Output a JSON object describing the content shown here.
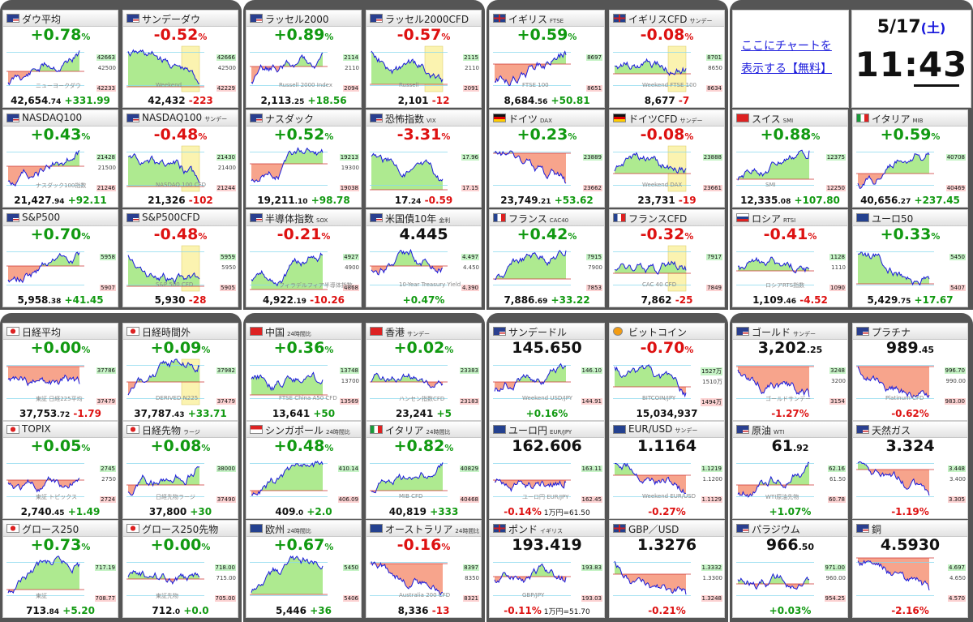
{
  "colors": {
    "up": "#119911",
    "down": "#dd1111",
    "area_up": "#aeea90",
    "area_down": "#f7a48c",
    "line": "#1a1adc",
    "group_bg": "#555555"
  },
  "info": {
    "link_line1": "ここにチャートを",
    "link_line2": "表示する【無料】",
    "date": "5/17",
    "weekday": "(土)",
    "time": "11:43"
  },
  "cards": [
    {
      "id": "dow",
      "title": "ダウ平均",
      "flag": "us",
      "main": "+0.78",
      "unit": "%",
      "dir": "up",
      "price": "42,654",
      "price_dec": ".74",
      "change": "+331.99",
      "hi": "42663",
      "mid": "42500",
      "lo": "42233",
      "wm": "ニューヨークダウ",
      "chart": {
        "trend": "up",
        "level": 0.45,
        "box": false
      }
    },
    {
      "id": "sunday-dow",
      "title": "サンデーダウ",
      "flag": "us",
      "main": "-0.52",
      "unit": "%",
      "dir": "down",
      "price": "42,432",
      "price_dec": "",
      "change": "-223",
      "hi": "42666",
      "mid": "42500",
      "lo": "42229",
      "wm": "Weekend",
      "chart": {
        "trend": "down",
        "level": 0.15,
        "box": true
      }
    },
    {
      "id": "russell",
      "title": "ラッセル2000",
      "flag": "us",
      "main": "+0.89",
      "unit": "%",
      "dir": "up",
      "price": "2,113",
      "price_dec": ".25",
      "change": "+18.56",
      "hi": "2114",
      "mid": "2110",
      "lo": "2094",
      "wm": "Russell 2000 Index",
      "chart": {
        "trend": "up",
        "level": 0.55,
        "box": false
      }
    },
    {
      "id": "russell-cfd",
      "title": "ラッセル2000CFD",
      "flag": "us",
      "main": "-0.57",
      "unit": "%",
      "dir": "down",
      "price": "2,101",
      "price_dec": "",
      "change": "-12",
      "hi": "2115",
      "mid": "2110",
      "lo": "2091",
      "wm": "Russell",
      "chart": {
        "trend": "down",
        "level": 0.2,
        "box": true
      }
    },
    {
      "id": "ftse",
      "title": "イギリス",
      "sub": "FTSE",
      "flag": "uk",
      "main": "+0.59",
      "unit": "%",
      "dir": "up",
      "price": "8,684",
      "price_dec": ".56",
      "change": "+50.81",
      "hi": "8697",
      "mid": "",
      "lo": "8651",
      "wm": "FTSE 100",
      "chart": {
        "trend": "up",
        "level": 0.6,
        "box": false
      }
    },
    {
      "id": "ftse-cfd",
      "title": "イギリスCFD",
      "sub": "サンデー",
      "flag": "uk",
      "main": "-0.08",
      "unit": "%",
      "dir": "down",
      "price": "8,677",
      "price_dec": "",
      "change": "-7",
      "hi": "8701",
      "mid": "8650",
      "lo": "8634",
      "wm": "Weekend FTSE 100",
      "chart": {
        "trend": "flat",
        "level": 0.4,
        "box": true
      }
    },
    {
      "id": "nasdaq100",
      "title": "NASDAQ100",
      "flag": "us",
      "main": "+0.43",
      "unit": "%",
      "dir": "up",
      "price": "21,427",
      "price_dec": ".94",
      "change": "+92.11",
      "hi": "21428",
      "mid": "21500",
      "lo": "21246",
      "wm": "ナスダック100指数",
      "chart": {
        "trend": "up",
        "level": 0.55,
        "box": false
      }
    },
    {
      "id": "nasdaq100-sun",
      "title": "NASDAQ100",
      "sub": "サンデー",
      "flag": "us",
      "main": "-0.48",
      "unit": "%",
      "dir": "down",
      "price": "21,326",
      "price_dec": "",
      "change": "-102",
      "hi": "21430",
      "mid": "21400",
      "lo": "21244",
      "wm": "NASDAQ 100 CFD",
      "chart": {
        "trend": "down",
        "level": 0.15,
        "box": true
      }
    },
    {
      "id": "nasdaq",
      "title": "ナスダック",
      "flag": "us",
      "main": "+0.52",
      "unit": "%",
      "dir": "up",
      "price": "19,211",
      "price_dec": ".10",
      "change": "+98.78",
      "hi": "19213",
      "mid": "19300",
      "lo": "19038",
      "wm": "",
      "chart": {
        "trend": "up",
        "level": 0.6,
        "box": false
      }
    },
    {
      "id": "vix",
      "title": "恐怖指数",
      "sub": "VIX",
      "flag": "us",
      "main": "-3.31",
      "unit": "%",
      "dir": "down",
      "price": "17",
      "price_dec": ".24",
      "change": "-0.59",
      "hi": "17.96",
      "mid": "",
      "lo": "17.15",
      "wm": "",
      "chart": {
        "trend": "down",
        "level": 0.1,
        "box": false
      }
    },
    {
      "id": "dax",
      "title": "ドイツ",
      "sub": "DAX",
      "flag": "de",
      "main": "+0.23",
      "unit": "%",
      "dir": "up",
      "price": "23,749",
      "price_dec": ".21",
      "change": "+53.62",
      "hi": "23889",
      "mid": "",
      "lo": "23662",
      "wm": "",
      "chart": {
        "trend": "down",
        "level": 0.8,
        "box": false
      }
    },
    {
      "id": "dax-cfd",
      "title": "ドイツCFD",
      "sub": "サンデー",
      "flag": "de",
      "main": "-0.08",
      "unit": "%",
      "dir": "down",
      "price": "23,731",
      "price_dec": "",
      "change": "-19",
      "hi": "23888",
      "mid": "",
      "lo": "23661",
      "wm": "Weekend DAX",
      "chart": {
        "trend": "flat",
        "level": 0.4,
        "box": true
      }
    },
    {
      "id": "smi",
      "title": "スイス",
      "sub": "SMI",
      "flag": "ch",
      "main": "+0.88",
      "unit": "%",
      "dir": "up",
      "price": "12,335",
      "price_dec": ".08",
      "change": "+107.80",
      "hi": "12375",
      "mid": "",
      "lo": "12250",
      "wm": "SMI",
      "chart": {
        "trend": "up",
        "level": 0.3,
        "box": false
      }
    },
    {
      "id": "mib",
      "title": "イタリア",
      "sub": "MIB",
      "flag": "it",
      "main": "+0.59",
      "unit": "%",
      "dir": "up",
      "price": "40,656",
      "price_dec": ".27",
      "change": "+237.45",
      "hi": "40708",
      "mid": "",
      "lo": "40469",
      "wm": "",
      "chart": {
        "trend": "up",
        "level": 0.4,
        "box": false
      }
    },
    {
      "id": "sp500",
      "title": "S&P500",
      "flag": "us",
      "main": "+0.70",
      "unit": "%",
      "dir": "up",
      "price": "5,958",
      "price_dec": ".38",
      "change": "+41.45",
      "hi": "5958",
      "mid": "",
      "lo": "5907",
      "wm": "",
      "chart": {
        "trend": "up",
        "level": 0.55,
        "box": false
      }
    },
    {
      "id": "sp500-cfd",
      "title": "S&P500CFD",
      "flag": "us",
      "main": "-0.48",
      "unit": "%",
      "dir": "down",
      "price": "5,930",
      "price_dec": "",
      "change": "-28",
      "hi": "5959",
      "mid": "5950",
      "lo": "5905",
      "wm": "S&P 500 CFD",
      "chart": {
        "trend": "down",
        "level": 0.15,
        "box": true
      }
    },
    {
      "id": "sox",
      "title": "半導体指数",
      "sub": "SOX",
      "flag": "us",
      "main": "-0.21",
      "unit": "%",
      "dir": "down",
      "price": "4,922",
      "price_dec": ".19",
      "change": "-10.26",
      "hi": "4927",
      "mid": "4900",
      "lo": "4868",
      "wm": "フィラデルフィア半導体指数",
      "chart": {
        "trend": "up",
        "level": 0.1,
        "box": false
      }
    },
    {
      "id": "us10y",
      "title": "米国債10年",
      "sub": "金利",
      "flag": "us",
      "main": "4.445",
      "unit": "",
      "dir": "blk",
      "price": "",
      "price_dec": "",
      "change": "+0.47%",
      "hi": "4.497",
      "mid": "4.450",
      "lo": "4.390",
      "wm": "10-Year Treasury Yield",
      "chart": {
        "trend": "flat",
        "level": 0.55,
        "box": false
      }
    },
    {
      "id": "cac40",
      "title": "フランス",
      "sub": "CAC40",
      "flag": "fr",
      "main": "+0.42",
      "unit": "%",
      "dir": "up",
      "price": "7,886",
      "price_dec": ".69",
      "change": "+33.22",
      "hi": "7915",
      "mid": "7900",
      "lo": "7853",
      "wm": "",
      "chart": {
        "trend": "up",
        "level": 0.3,
        "box": false
      }
    },
    {
      "id": "cac-cfd",
      "title": "フランスCFD",
      "flag": "fr",
      "main": "-0.32",
      "unit": "%",
      "dir": "down",
      "price": "7,862",
      "price_dec": "",
      "change": "-25",
      "hi": "7917",
      "mid": "",
      "lo": "7849",
      "wm": "CAC 40 CFD",
      "chart": {
        "trend": "flat",
        "level": 0.4,
        "box": true
      }
    },
    {
      "id": "rtsi",
      "title": "ロシア",
      "sub": "RTSI",
      "flag": "ru",
      "main": "-0.41",
      "unit": "%",
      "dir": "down",
      "price": "1,109",
      "price_dec": ".46",
      "change": "-4.52",
      "hi": "1128",
      "mid": "1110",
      "lo": "1090",
      "wm": "ロシアRTS指数",
      "chart": {
        "trend": "flat",
        "level": 0.45,
        "box": false
      }
    },
    {
      "id": "euro50",
      "title": "ユーロ50",
      "flag": "eu",
      "main": "+0.33",
      "unit": "%",
      "dir": "up",
      "price": "5,429",
      "price_dec": ".75",
      "change": "+17.67",
      "hi": "5450",
      "mid": "",
      "lo": "5407",
      "wm": "",
      "chart": {
        "trend": "down",
        "level": 0.2,
        "box": false
      }
    },
    {
      "id": "nikkei",
      "title": "日経平均",
      "flag": "jp",
      "main": "+0.00",
      "unit": "%",
      "dir": "up",
      "price": "37,753",
      "price_dec": ".72",
      "change": "-1.79",
      "hi": "37786",
      "mid": "",
      "lo": "37479",
      "wm": "東証 日経225平均",
      "chart": {
        "trend": "flat",
        "level": 0.8,
        "box": false
      }
    },
    {
      "id": "nikkei-after",
      "title": "日経時間外",
      "flag": "jp",
      "main": "+0.09",
      "unit": "%",
      "dir": "up",
      "price": "37,787",
      "price_dec": ".43",
      "change": "+33.71",
      "hi": "37982",
      "mid": "",
      "lo": "37479",
      "wm": "DERIVED N225",
      "chart": {
        "trend": "up",
        "level": 0.5,
        "box": true
      }
    },
    {
      "id": "china",
      "title": "中国",
      "sub": "24時間比",
      "flag": "cn",
      "main": "+0.36",
      "unit": "%",
      "dir": "up",
      "price": "13,641",
      "price_dec": "",
      "change": "+50",
      "hi": "13748",
      "mid": "13700",
      "lo": "13569",
      "wm": "FTSE China A50 CFD",
      "chart": {
        "trend": "flat",
        "level": 0.25,
        "box": false
      }
    },
    {
      "id": "hk",
      "title": "香港",
      "sub": "サンデー",
      "flag": "hk",
      "main": "+0.02",
      "unit": "%",
      "dir": "up",
      "price": "23,241",
      "price_dec": "",
      "change": "+5",
      "hi": "23383",
      "mid": "",
      "lo": "23183",
      "wm": "ハンセン指数CFD",
      "chart": {
        "trend": "flat",
        "level": 0.5,
        "box": false
      }
    },
    {
      "id": "usdjpy-sun",
      "title": "サンデードル",
      "flag": "us",
      "main": "145.650",
      "unit": "",
      "dir": "blk",
      "price": "",
      "price_dec": "",
      "change": "+0.16%",
      "hi": "146.10",
      "mid": "",
      "lo": "144.91",
      "wm": "Weekend USD/JPY",
      "chart": {
        "trend": "up",
        "level": 0.5,
        "box": false
      }
    },
    {
      "id": "bitcoin",
      "title": "ビットコイン",
      "flag": "btc",
      "main": "-0.70",
      "unit": "%",
      "dir": "down",
      "price": "15,034,937",
      "price_dec": "",
      "change": "",
      "hi": "1527万",
      "mid": "1510万",
      "lo": "1494万",
      "wm": "BITCOIN/JPY",
      "chart": {
        "trend": "down",
        "level": 0.4,
        "box": false
      }
    },
    {
      "id": "gold-sun",
      "title": "ゴールド",
      "sub": "サンデー",
      "flag": "us",
      "main": "3,202",
      "unit": ".25",
      "dir": "blk",
      "price": "",
      "price_dec": "",
      "change": "-1.27%",
      "hi": "3248",
      "mid": "3200",
      "lo": "3154",
      "wm": "ゴールドサンデー",
      "chart": {
        "trend": "down",
        "level": 0.8,
        "box": false
      }
    },
    {
      "id": "platinum",
      "title": "プラチナ",
      "flag": "us",
      "main": "989",
      "unit": ".45",
      "dir": "blk",
      "price": "",
      "price_dec": "",
      "change": "-0.62%",
      "hi": "996.70",
      "mid": "990.00",
      "lo": "983.00",
      "wm": "Platinum CFD",
      "chart": {
        "trend": "down",
        "level": 0.8,
        "box": false
      }
    },
    {
      "id": "topix",
      "title": "TOPIX",
      "flag": "jp",
      "main": "+0.05",
      "unit": "%",
      "dir": "up",
      "price": "2,740",
      "price_dec": ".45",
      "change": "+1.49",
      "hi": "2745",
      "mid": "2750",
      "lo": "2724",
      "wm": "東証 トピックス",
      "chart": {
        "trend": "flat",
        "level": 0.5,
        "box": false
      }
    },
    {
      "id": "nk-futures",
      "title": "日経先物",
      "sub": "ラージ",
      "flag": "jp",
      "main": "+0.08",
      "unit": "%",
      "dir": "up",
      "price": "37,800",
      "price_dec": "",
      "change": "+30",
      "hi": "38000",
      "mid": "",
      "lo": "37490",
      "wm": "日経先物ラージ",
      "chart": {
        "trend": "up",
        "level": 0.4,
        "box": false
      }
    },
    {
      "id": "sg",
      "title": "シンガポール",
      "sub": "24時間比",
      "flag": "sg",
      "main": "+0.48",
      "unit": "%",
      "dir": "up",
      "price": "409",
      "price_dec": ".0",
      "change": "+2.0",
      "hi": "410.14",
      "mid": "",
      "lo": "406.09",
      "wm": "",
      "chart": {
        "trend": "up",
        "level": 0.3,
        "box": false
      }
    },
    {
      "id": "it24",
      "title": "イタリア",
      "sub": "24時間比",
      "flag": "it",
      "main": "+0.82",
      "unit": "%",
      "dir": "up",
      "price": "40,819",
      "price_dec": "",
      "change": "+333",
      "hi": "40829",
      "mid": "",
      "lo": "40468",
      "wm": "MIB CFD",
      "chart": {
        "trend": "up",
        "level": 0.3,
        "box": false
      }
    },
    {
      "id": "eurjpy",
      "title": "ユーロ円",
      "sub": "EUR/JPY",
      "flag": "eu",
      "main": "162.606",
      "unit": "",
      "dir": "blk",
      "price": "",
      "price_dec": "",
      "change": "-0.14%",
      "change2": "1万円=61.50",
      "hi": "163.11",
      "mid": "",
      "lo": "162.45",
      "wm": "ユーロ円 EUR/JPY",
      "chart": {
        "trend": "flat",
        "level": 0.5,
        "box": false
      }
    },
    {
      "id": "eurusd",
      "title": "EUR/USD",
      "sub": "サンデー",
      "flag": "eu",
      "main": "1.1164",
      "unit": "",
      "dir": "blk",
      "price": "",
      "price_dec": "",
      "change": "-0.27%",
      "hi": "1.1219",
      "mid": "1.1200",
      "lo": "1.1129",
      "wm": "Weekend EUR/USD",
      "chart": {
        "trend": "down",
        "level": 0.6,
        "box": false
      }
    },
    {
      "id": "oil",
      "title": "原油",
      "sub": "WTI",
      "flag": "us",
      "main": "61",
      "unit": ".92",
      "dir": "blk",
      "price": "",
      "price_dec": "",
      "change": "+1.07%",
      "hi": "62.16",
      "mid": "61.50",
      "lo": "60.78",
      "wm": "WTI原油先物",
      "chart": {
        "trend": "up",
        "level": 0.4,
        "box": false
      }
    },
    {
      "id": "natgas",
      "title": "天然ガス",
      "flag": "us",
      "main": "3.324",
      "unit": "",
      "dir": "blk",
      "price": "",
      "price_dec": "",
      "change": "-1.19%",
      "hi": "3.448",
      "mid": "3.400",
      "lo": "3.305",
      "wm": "",
      "chart": {
        "trend": "down",
        "level": 0.7,
        "box": false
      }
    },
    {
      "id": "growth250",
      "title": "グロース250",
      "flag": "jp",
      "main": "+0.73",
      "unit": "%",
      "dir": "up",
      "price": "713",
      "price_dec": ".84",
      "change": "+5.20",
      "hi": "717.19",
      "mid": "",
      "lo": "708.77",
      "wm": "東証",
      "chart": {
        "trend": "up",
        "level": 0.3,
        "box": false
      }
    },
    {
      "id": "growth250-f",
      "title": "グロース250先物",
      "flag": "jp",
      "main": "+0.00",
      "unit": "%",
      "dir": "up",
      "price": "712",
      "price_dec": ".0",
      "change": "+0.0",
      "hi": "718.00",
      "mid": "715.00",
      "lo": "705.00",
      "wm": "東証先物",
      "chart": {
        "trend": "flat",
        "level": 0.5,
        "box": false
      }
    },
    {
      "id": "eu24",
      "title": "欧州",
      "sub": "24時間比",
      "flag": "eu",
      "main": "+0.67",
      "unit": "%",
      "dir": "up",
      "price": "5,446",
      "price_dec": "",
      "change": "+36",
      "hi": "5450",
      "mid": "",
      "lo": "5406",
      "wm": "",
      "chart": {
        "trend": "up",
        "level": 0.2,
        "box": false
      }
    },
    {
      "id": "aus24",
      "title": "オーストラリア",
      "sub": "24時間比",
      "flag": "au",
      "main": "-0.16",
      "unit": "%",
      "dir": "down",
      "price": "8,336",
      "price_dec": "",
      "change": "-13",
      "hi": "8397",
      "mid": "8350",
      "lo": "8321",
      "wm": "Australia 200 CFD",
      "chart": {
        "trend": "down",
        "level": 0.8,
        "box": false
      }
    },
    {
      "id": "gbpjpy",
      "title": "ポンド",
      "sub": "イギリス",
      "flag": "uk",
      "main": "193.419",
      "unit": "",
      "dir": "blk",
      "price": "",
      "price_dec": "",
      "change": "-0.11%",
      "change2": "1万円=51.70",
      "hi": "193.83",
      "mid": "",
      "lo": "193.03",
      "wm": "GBP/JPY",
      "chart": {
        "trend": "flat",
        "level": 0.55,
        "box": false
      }
    },
    {
      "id": "gbpusd",
      "title": "GBP／USD",
      "flag": "uk",
      "main": "1.3276",
      "unit": "",
      "dir": "blk",
      "price": "",
      "price_dec": "",
      "change": "-0.21%",
      "hi": "1.3332",
      "mid": "1.3300",
      "lo": "1.3248",
      "wm": "",
      "chart": {
        "trend": "down",
        "level": 0.6,
        "box": false
      }
    },
    {
      "id": "palladium",
      "title": "パラジウム",
      "flag": "us",
      "main": "966",
      "unit": ".50",
      "dir": "blk",
      "price": "",
      "price_dec": "",
      "change": "+0.03%",
      "hi": "971.00",
      "mid": "960.00",
      "lo": "954.25",
      "wm": "",
      "chart": {
        "trend": "flat",
        "level": 0.4,
        "box": false
      }
    },
    {
      "id": "copper",
      "title": "銅",
      "flag": "us",
      "main": "4.5930",
      "unit": "",
      "dir": "blk",
      "price": "",
      "price_dec": "",
      "change": "-2.16%",
      "hi": "4.697",
      "mid": "4.650",
      "lo": "4.570",
      "wm": "",
      "chart": {
        "trend": "down",
        "level": 0.9,
        "box": false
      }
    }
  ]
}
